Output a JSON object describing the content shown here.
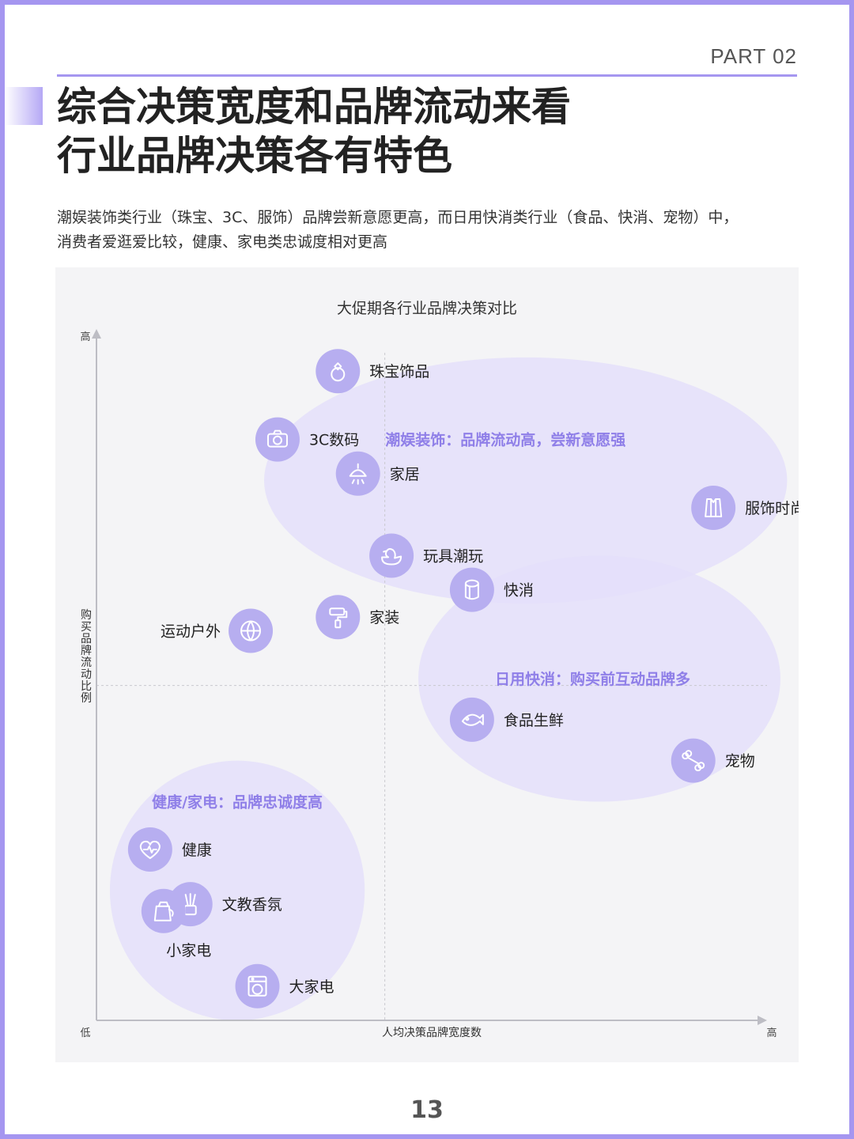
{
  "header": {
    "part_label": "PART 02",
    "title_line1": "综合决策宽度和品牌流动来看",
    "title_line2": "行业品牌决策各有特色",
    "subtitle_line1": "潮娱装饰类行业（珠宝、3C、服饰）品牌尝新意愿更高，而日用快消类行业（食品、快消、宠物）中，",
    "subtitle_line2": "消费者爱逛爱比较，健康、家电类忠诚度相对更高",
    "accent_color": "#a596f0"
  },
  "chart_data": {
    "type": "scatter",
    "title": "大促期各行业品牌决策对比",
    "xlabel": "人均决策品牌宽度数",
    "ylabel": "购买品牌流动比例",
    "x_low_label": "低",
    "x_high_label": "高",
    "y_high_label": "高",
    "xlim": [
      0,
      100
    ],
    "ylim": [
      0,
      100
    ],
    "midline": {
      "x": 43,
      "y": 49
    },
    "grid": false,
    "marker_color": "#b7aef0",
    "cluster_color": "#e4dffa",
    "cluster_label_color": "#8f7fe8",
    "points": [
      {
        "label": "珠宝饰品",
        "icon": "ring-icon",
        "x": 36,
        "y": 95,
        "label_side": "right"
      },
      {
        "label": "3C数码",
        "icon": "camera-icon",
        "x": 27,
        "y": 85,
        "label_side": "right"
      },
      {
        "label": "家居",
        "icon": "lamp-icon",
        "x": 39,
        "y": 80,
        "label_side": "right"
      },
      {
        "label": "服饰时尚",
        "icon": "shirt-icon",
        "x": 92,
        "y": 75,
        "label_side": "right"
      },
      {
        "label": "玩具潮玩",
        "icon": "duck-icon",
        "x": 44,
        "y": 68,
        "label_side": "right"
      },
      {
        "label": "快消",
        "icon": "tissue-icon",
        "x": 56,
        "y": 63,
        "label_side": "right"
      },
      {
        "label": "家装",
        "icon": "paint-roller-icon",
        "x": 36,
        "y": 59,
        "label_side": "right"
      },
      {
        "label": "运动户外",
        "icon": "basketball-icon",
        "x": 23,
        "y": 57,
        "label_side": "left"
      },
      {
        "label": "食品生鲜",
        "icon": "fish-icon",
        "x": 56,
        "y": 44,
        "label_side": "right"
      },
      {
        "label": "宠物",
        "icon": "bone-icon",
        "x": 89,
        "y": 38,
        "label_side": "right"
      },
      {
        "label": "健康",
        "icon": "heart-icon",
        "x": 8,
        "y": 25,
        "label_side": "right"
      },
      {
        "label": "文教香氛",
        "icon": "diffuser-icon",
        "x": 14,
        "y": 17,
        "label_side": "right"
      },
      {
        "label": "小家电",
        "icon": "kettle-icon",
        "x": 10,
        "y": 16,
        "label_side": "below"
      },
      {
        "label": "大家电",
        "icon": "washing-machine-icon",
        "x": 24,
        "y": 5,
        "label_side": "right"
      }
    ],
    "clusters": [
      {
        "label": "潮娱装饰：品牌流动高，尝新意愿强",
        "cx": 64,
        "cy": 79,
        "rx": 39,
        "ry": 18,
        "label_x": 61,
        "label_y": 85
      },
      {
        "label": "日用快消：购买前互动品牌多",
        "cx": 75,
        "cy": 50,
        "rx": 27,
        "ry": 18,
        "label_x": 74,
        "label_y": 50
      },
      {
        "label": "健康/家电：品牌忠诚度高",
        "cx": 21,
        "cy": 19,
        "rx": 19,
        "ry": 19,
        "label_x": 21,
        "label_y": 32
      }
    ]
  },
  "footer": {
    "page_number": "13"
  }
}
